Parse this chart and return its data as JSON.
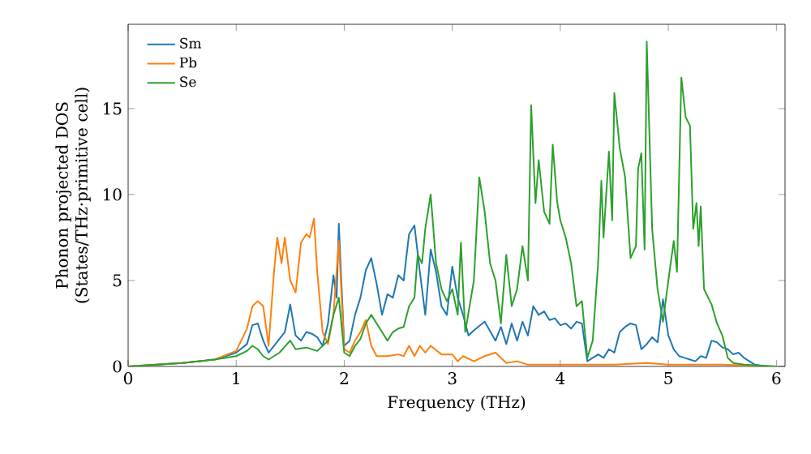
{
  "chart_data": {
    "type": "line",
    "xlabel": "Frequency (THz)",
    "ylabel": "Phonon projected DOS (States/THz·primitive cell)",
    "xlim": [
      0,
      6.08
    ],
    "ylim": [
      0,
      19.9
    ],
    "xticks": [
      0,
      1,
      2,
      3,
      4,
      5,
      6
    ],
    "yticks": [
      0,
      5,
      10,
      15
    ],
    "legend": "top left",
    "grid": false,
    "series": [
      {
        "name": "Sm",
        "color": "#1f77b4",
        "x": [
          0,
          0.5,
          0.8,
          1.0,
          1.1,
          1.15,
          1.2,
          1.25,
          1.3,
          1.35,
          1.45,
          1.5,
          1.55,
          1.6,
          1.65,
          1.7,
          1.75,
          1.8,
          1.85,
          1.9,
          1.93,
          1.95,
          1.98,
          2.0,
          2.05,
          2.1,
          2.15,
          2.2,
          2.25,
          2.3,
          2.35,
          2.4,
          2.45,
          2.5,
          2.55,
          2.6,
          2.65,
          2.7,
          2.75,
          2.8,
          2.85,
          2.9,
          2.95,
          3.0,
          3.05,
          3.1,
          3.15,
          3.2,
          3.3,
          3.4,
          3.45,
          3.5,
          3.55,
          3.6,
          3.65,
          3.7,
          3.75,
          3.8,
          3.85,
          3.9,
          3.95,
          4.0,
          4.05,
          4.1,
          4.15,
          4.2,
          4.25,
          4.3,
          4.35,
          4.4,
          4.45,
          4.5,
          4.55,
          4.6,
          4.65,
          4.7,
          4.75,
          4.8,
          4.85,
          4.9,
          4.95,
          5.0,
          5.05,
          5.1,
          5.15,
          5.2,
          5.25,
          5.3,
          5.35,
          5.4,
          5.45,
          5.5,
          5.55,
          5.6,
          5.65,
          5.7,
          5.75,
          5.8,
          5.9,
          6.0
        ],
        "values": [
          0,
          0.2,
          0.4,
          0.8,
          1.3,
          2.4,
          2.5,
          1.5,
          0.8,
          1.2,
          2.0,
          3.6,
          1.8,
          1.5,
          2.0,
          1.9,
          1.7,
          1.2,
          2.5,
          5.3,
          4.0,
          8.3,
          4.0,
          1.2,
          1.5,
          3.0,
          4.0,
          5.6,
          6.3,
          4.8,
          3.0,
          4.2,
          4.0,
          5.3,
          5.0,
          7.7,
          8.2,
          5.5,
          3.0,
          6.8,
          5.5,
          3.5,
          3.0,
          5.8,
          4.0,
          3.0,
          1.8,
          2.1,
          2.6,
          1.5,
          2.3,
          1.3,
          2.5,
          1.5,
          2.6,
          1.8,
          3.5,
          3.0,
          3.2,
          2.7,
          2.8,
          2.4,
          2.5,
          2.2,
          2.6,
          2.5,
          0.3,
          0.5,
          0.7,
          0.5,
          1.0,
          0.8,
          2.0,
          2.3,
          2.5,
          2.4,
          1.0,
          1.3,
          1.7,
          1.4,
          3.9,
          1.8,
          1.0,
          0.6,
          0.5,
          0.4,
          0.3,
          0.6,
          0.5,
          1.5,
          1.4,
          1.1,
          1.0,
          0.7,
          0.8,
          0.5,
          0.3,
          0.1,
          0,
          0
        ]
      },
      {
        "name": "Pb",
        "color": "#ff7f0e",
        "x": [
          0,
          0.5,
          0.8,
          1.0,
          1.1,
          1.15,
          1.2,
          1.25,
          1.3,
          1.35,
          1.38,
          1.42,
          1.45,
          1.5,
          1.55,
          1.6,
          1.65,
          1.68,
          1.72,
          1.75,
          1.8,
          1.85,
          1.9,
          1.95,
          2.0,
          2.05,
          2.1,
          2.15,
          2.2,
          2.25,
          2.3,
          2.4,
          2.5,
          2.55,
          2.6,
          2.65,
          2.7,
          2.75,
          2.8,
          2.9,
          3.0,
          3.05,
          3.1,
          3.2,
          3.3,
          3.4,
          3.5,
          3.6,
          3.7,
          4.0,
          4.5,
          4.8,
          5.0,
          5.5,
          6.0
        ],
        "values": [
          0,
          0.2,
          0.4,
          0.9,
          2.2,
          3.5,
          3.8,
          3.5,
          1.2,
          5.5,
          7.5,
          6.0,
          7.5,
          5.0,
          4.3,
          7.2,
          7.7,
          7.5,
          8.6,
          5.5,
          2.0,
          1.3,
          3.0,
          7.3,
          1.0,
          0.8,
          1.5,
          2.0,
          2.7,
          1.2,
          0.6,
          0.6,
          0.7,
          0.6,
          1.2,
          0.6,
          1.2,
          0.8,
          1.2,
          0.7,
          0.7,
          0.3,
          0.6,
          0.3,
          0.6,
          0.8,
          0.2,
          0.3,
          0.1,
          0.1,
          0.1,
          0.2,
          0.1,
          0.1,
          0
        ]
      },
      {
        "name": "Se",
        "color": "#2ca02c",
        "x": [
          0,
          0.5,
          0.8,
          1.0,
          1.1,
          1.15,
          1.2,
          1.25,
          1.3,
          1.4,
          1.5,
          1.55,
          1.65,
          1.75,
          1.85,
          1.9,
          1.95,
          2.0,
          2.05,
          2.1,
          2.15,
          2.2,
          2.25,
          2.3,
          2.35,
          2.4,
          2.45,
          2.5,
          2.55,
          2.6,
          2.65,
          2.68,
          2.72,
          2.75,
          2.8,
          2.85,
          2.9,
          2.95,
          3.0,
          3.05,
          3.08,
          3.12,
          3.2,
          3.25,
          3.3,
          3.35,
          3.4,
          3.45,
          3.5,
          3.55,
          3.6,
          3.65,
          3.7,
          3.73,
          3.77,
          3.8,
          3.85,
          3.9,
          3.93,
          3.97,
          4.0,
          4.05,
          4.1,
          4.15,
          4.2,
          4.25,
          4.3,
          4.35,
          4.38,
          4.4,
          4.45,
          4.48,
          4.5,
          4.55,
          4.6,
          4.65,
          4.7,
          4.72,
          4.75,
          4.78,
          4.8,
          4.85,
          4.9,
          4.95,
          5.0,
          5.05,
          5.08,
          5.12,
          5.16,
          5.2,
          5.23,
          5.26,
          5.28,
          5.3,
          5.33,
          5.4,
          5.45,
          5.5,
          5.55,
          5.6,
          5.7,
          6.0
        ],
        "values": [
          0,
          0.2,
          0.4,
          0.6,
          0.9,
          1.2,
          1.0,
          0.6,
          0.4,
          0.8,
          1.5,
          1.0,
          1.1,
          0.9,
          1.5,
          3.0,
          4.0,
          0.8,
          0.6,
          1.2,
          1.6,
          2.5,
          3.0,
          2.5,
          2.0,
          1.5,
          2.0,
          2.2,
          2.3,
          3.5,
          4.0,
          6.5,
          6.0,
          8.0,
          10.0,
          6.0,
          4.5,
          3.8,
          4.5,
          3.0,
          7.2,
          2.0,
          5.0,
          11.0,
          9.0,
          6.0,
          5.0,
          2.5,
          6.5,
          3.5,
          4.5,
          7.0,
          5.0,
          15.2,
          9.5,
          12.0,
          9.0,
          8.3,
          12.9,
          9.6,
          8.5,
          7.5,
          6.0,
          3.5,
          3.8,
          0.5,
          1.5,
          6.0,
          10.8,
          7.5,
          12.5,
          8.5,
          15.9,
          12.7,
          11.0,
          6.3,
          7.0,
          11.5,
          12.4,
          6.8,
          18.9,
          8.0,
          4.5,
          2.6,
          5.0,
          7.3,
          5.5,
          16.8,
          14.5,
          14.0,
          8.0,
          9.5,
          7.0,
          9.3,
          4.5,
          3.6,
          2.5,
          1.8,
          0.5,
          0.2,
          0.1,
          0
        ]
      }
    ]
  }
}
